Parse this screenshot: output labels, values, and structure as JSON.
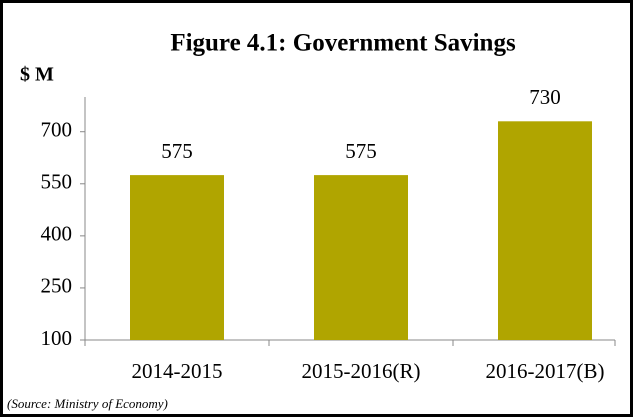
{
  "chart_data": {
    "type": "bar",
    "title": "Figure 4.1: Government Savings",
    "y_label": "$ M",
    "source": "(Source: Ministry of Economy)",
    "categories": [
      "2014-2015",
      "2015-2016(R)",
      "2016-2017(B)"
    ],
    "values": [
      575,
      575,
      730
    ],
    "color": "#b0a500",
    "ylim": [
      100,
      800
    ],
    "yticks": [
      100,
      250,
      400,
      550,
      700
    ],
    "grid": false
  }
}
